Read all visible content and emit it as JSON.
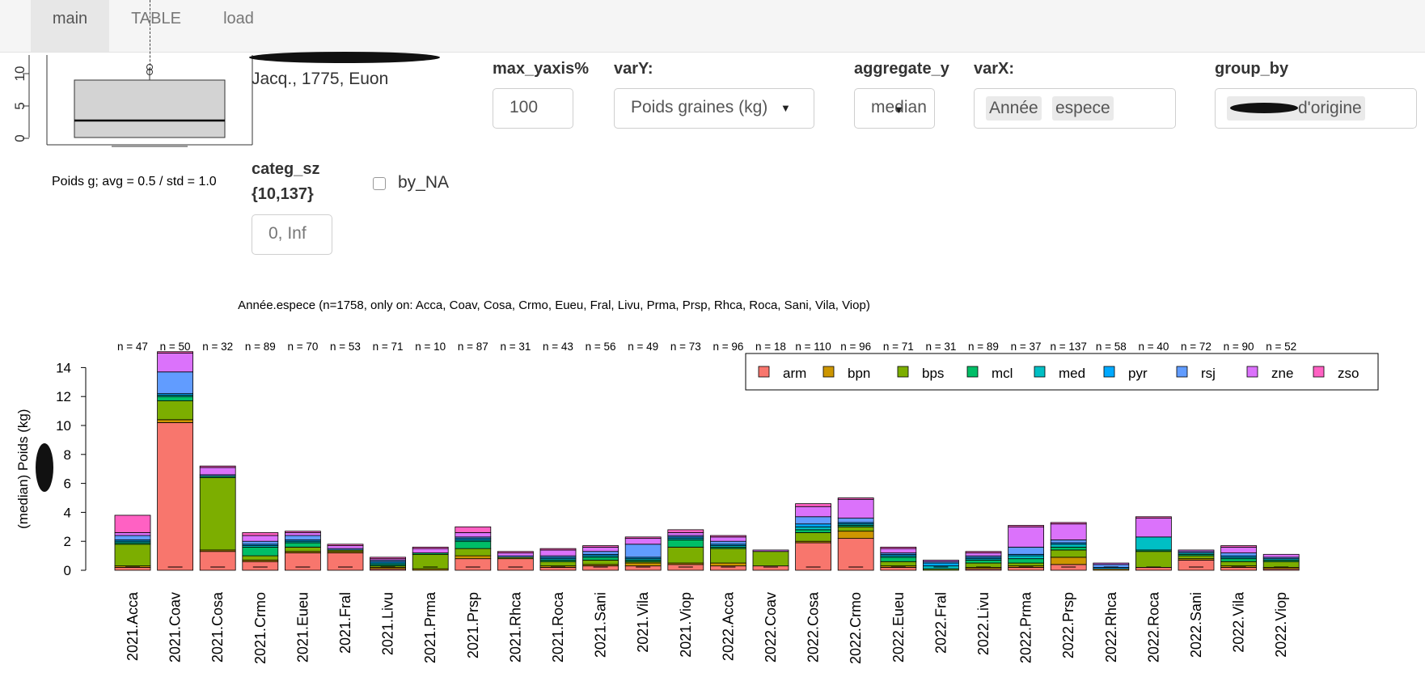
{
  "tabs": [
    {
      "label": "main",
      "active": true
    },
    {
      "label": "TABLE",
      "active": false
    },
    {
      "label": "load",
      "active": false
    }
  ],
  "summary": {
    "species_text": "Jacq., 1775, Euon",
    "stat_text": "Poids g; avg = 0.5 / std = 1.0",
    "boxplot_ticks": [
      "0",
      "5",
      "10"
    ]
  },
  "controls": {
    "max_yaxis": {
      "label": "max_yaxis%",
      "value": "100"
    },
    "varY": {
      "label": "varY:",
      "value": "Poids graines (kg)"
    },
    "aggregate_y": {
      "label": "aggregate_y",
      "value": "median"
    },
    "varX": {
      "label": "varX:",
      "chips": [
        "Année",
        "espece"
      ]
    },
    "group_by": {
      "label": "group_by",
      "chip": "d'origine"
    },
    "categ_sz": {
      "label": "categ_sz",
      "range_label": "{10,137}",
      "value": "0, Inf"
    },
    "by_NA": {
      "label": "by_NA",
      "checked": false
    }
  },
  "chart_data": {
    "type": "bar",
    "stacked": true,
    "title": "Année.espece (n=1758, only on: Acca, Coav, Cosa, Crmo, Eueu, Fral, Livu, Prma, Prsp, Rhca, Roca, Sani, Vila, Viop)",
    "ylabel": "(median) Poids (kg)",
    "xlabel": "",
    "ylim": [
      0,
      15
    ],
    "yticks": [
      0,
      2,
      4,
      6,
      8,
      10,
      12,
      14
    ],
    "legend_position": "top-right",
    "categories": [
      "2021.Acca",
      "2021.Coav",
      "2021.Cosa",
      "2021.Crmo",
      "2021.Eueu",
      "2021.Fral",
      "2021.Livu",
      "2021.Prma",
      "2021.Prsp",
      "2021.Rhca",
      "2021.Roca",
      "2021.Sani",
      "2021.Vila",
      "2021.Viop",
      "2022.Acca",
      "2022.Coav",
      "2022.Cosa",
      "2022.Crmo",
      "2022.Eueu",
      "2022.Fral",
      "2022.Livu",
      "2022.Prma",
      "2022.Prsp",
      "2022.Rhca",
      "2022.Roca",
      "2022.Sani",
      "2022.Vila",
      "2022.Viop"
    ],
    "n_labels": [
      "n = 47",
      "n = 50",
      "n = 32",
      "n = 89",
      "n = 70",
      "n = 53",
      "n = 71",
      "n = 10",
      "n = 87",
      "n = 31",
      "n = 43",
      "n = 56",
      "n = 49",
      "n = 73",
      "n = 96",
      "n = 18",
      "n = 110",
      "n = 96",
      "n = 71",
      "n = 31",
      "n = 89",
      "n = 37",
      "n = 137",
      "n = 58",
      "n = 40",
      "n = 72",
      "n = 90",
      "n = 52"
    ],
    "series": [
      {
        "name": "arm",
        "color": "#F8766D",
        "values": [
          0.2,
          10.2,
          1.3,
          0.6,
          1.2,
          1.2,
          0.1,
          0.0,
          0.8,
          0.8,
          0.2,
          0.3,
          0.3,
          0.4,
          0.3,
          0.3,
          1.9,
          2.2,
          0.2,
          0.0,
          0.1,
          0.2,
          0.4,
          0.0,
          0.2,
          0.7,
          0.2,
          0.1
        ]
      },
      {
        "name": "bpn",
        "color": "#CD9600",
        "values": [
          0.1,
          0.2,
          0.1,
          0.1,
          0.1,
          0.1,
          0.1,
          0.1,
          0.2,
          0.0,
          0.1,
          0.1,
          0.2,
          0.1,
          0.2,
          0.0,
          0.1,
          0.5,
          0.1,
          0.0,
          0.1,
          0.1,
          0.5,
          0.1,
          0.0,
          0.1,
          0.1,
          0.1
        ]
      },
      {
        "name": "bps",
        "color": "#7CAE00",
        "values": [
          1.5,
          1.3,
          5.0,
          0.3,
          0.3,
          0.1,
          0.1,
          1.0,
          0.5,
          0.1,
          0.3,
          0.3,
          0.1,
          1.1,
          1.0,
          1.0,
          0.6,
          0.3,
          0.3,
          0.1,
          0.3,
          0.2,
          0.5,
          0.0,
          1.1,
          0.2,
          0.3,
          0.4
        ]
      },
      {
        "name": "mcl",
        "color": "#00BE67",
        "values": [
          0.1,
          0.3,
          0.1,
          0.6,
          0.3,
          0.0,
          0.1,
          0.1,
          0.5,
          0.0,
          0.1,
          0.2,
          0.1,
          0.5,
          0.1,
          0.0,
          0.2,
          0.1,
          0.3,
          0.0,
          0.2,
          0.3,
          0.2,
          0.0,
          0.1,
          0.1,
          0.2,
          0.1
        ]
      },
      {
        "name": "med",
        "color": "#00BFC4",
        "values": [
          0.1,
          0.1,
          0.0,
          0.1,
          0.1,
          0.0,
          0.1,
          0.0,
          0.1,
          0.0,
          0.1,
          0.1,
          0.1,
          0.1,
          0.1,
          0.0,
          0.2,
          0.1,
          0.1,
          0.2,
          0.1,
          0.2,
          0.2,
          0.0,
          0.9,
          0.1,
          0.1,
          0.1
        ]
      },
      {
        "name": "pyr",
        "color": "#00A9FF",
        "values": [
          0.1,
          0.1,
          0.0,
          0.1,
          0.1,
          0.0,
          0.1,
          0.0,
          0.1,
          0.0,
          0.1,
          0.1,
          0.1,
          0.1,
          0.1,
          0.0,
          0.2,
          0.1,
          0.1,
          0.2,
          0.1,
          0.1,
          0.1,
          0.1,
          0.0,
          0.0,
          0.1,
          0.0
        ]
      },
      {
        "name": "rsj",
        "color": "#619CFF",
        "values": [
          0.3,
          1.5,
          0.1,
          0.2,
          0.3,
          0.1,
          0.1,
          0.0,
          0.1,
          0.1,
          0.1,
          0.2,
          0.9,
          0.1,
          0.2,
          0.0,
          0.5,
          0.3,
          0.1,
          0.1,
          0.1,
          0.5,
          0.2,
          0.2,
          0.0,
          0.1,
          0.2,
          0.1
        ]
      },
      {
        "name": "zne",
        "color": "#DB72FB",
        "values": [
          0.2,
          1.3,
          0.5,
          0.4,
          0.2,
          0.2,
          0.1,
          0.3,
          0.3,
          0.2,
          0.4,
          0.3,
          0.4,
          0.2,
          0.3,
          0.1,
          0.7,
          1.3,
          0.3,
          0.1,
          0.2,
          1.4,
          1.1,
          0.1,
          1.3,
          0.1,
          0.4,
          0.2
        ]
      },
      {
        "name": "zso",
        "color": "#FF61C3",
        "values": [
          1.2,
          0.1,
          0.1,
          0.2,
          0.1,
          0.1,
          0.1,
          0.1,
          0.4,
          0.1,
          0.1,
          0.1,
          0.1,
          0.2,
          0.1,
          0.0,
          0.2,
          0.1,
          0.1,
          0.0,
          0.1,
          0.1,
          0.1,
          0.0,
          0.1,
          0.0,
          0.1,
          0.0
        ]
      }
    ]
  }
}
